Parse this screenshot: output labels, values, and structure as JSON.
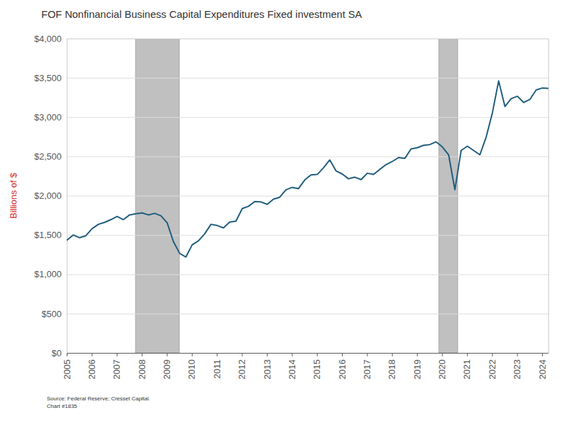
{
  "chart_data": {
    "type": "line",
    "title": "FOF Nonfinancial Business Capital Expenditures Fixed investment SA",
    "y_label": "Billions of $",
    "source": "Source: Federal Reserve; Cresset Capital.",
    "chart_number": "Chart #1835",
    "color": "#1d5b7c",
    "grid": true,
    "x": [
      2005,
      2005.25,
      2005.5,
      2005.75,
      2006,
      2006.25,
      2006.5,
      2006.75,
      2007,
      2007.25,
      2007.5,
      2007.75,
      2008,
      2008.25,
      2008.5,
      2008.75,
      2009,
      2009.25,
      2009.5,
      2009.75,
      2010,
      2010.25,
      2010.5,
      2010.75,
      2011,
      2011.25,
      2011.5,
      2011.75,
      2012,
      2012.25,
      2012.5,
      2012.75,
      2013,
      2013.25,
      2013.5,
      2013.75,
      2014,
      2014.25,
      2014.5,
      2014.75,
      2015,
      2015.25,
      2015.5,
      2015.75,
      2016,
      2016.25,
      2016.5,
      2016.75,
      2017,
      2017.25,
      2017.5,
      2017.75,
      2018,
      2018.25,
      2018.5,
      2018.75,
      2019,
      2019.25,
      2019.5,
      2019.75,
      2020,
      2020.25,
      2020.5,
      2020.75,
      2021,
      2021.25,
      2021.5,
      2021.75,
      2022,
      2022.25,
      2022.5,
      2022.75,
      2023,
      2023.25,
      2023.5,
      2023.75,
      2024,
      2024.25
    ],
    "values": [
      1440,
      1505,
      1470,
      1495,
      1585,
      1640,
      1665,
      1700,
      1740,
      1700,
      1760,
      1775,
      1785,
      1760,
      1780,
      1750,
      1660,
      1420,
      1270,
      1225,
      1380,
      1430,
      1520,
      1640,
      1625,
      1595,
      1670,
      1680,
      1840,
      1870,
      1930,
      1925,
      1895,
      1960,
      1985,
      2080,
      2110,
      2095,
      2205,
      2270,
      2275,
      2360,
      2460,
      2320,
      2280,
      2220,
      2240,
      2210,
      2290,
      2275,
      2340,
      2400,
      2440,
      2490,
      2480,
      2600,
      2615,
      2645,
      2655,
      2690,
      2625,
      2525,
      2080,
      2580,
      2635,
      2580,
      2525,
      2750,
      3060,
      3465,
      3140,
      3240,
      3270,
      3190,
      3230,
      3350,
      3375,
      3370
    ],
    "recessions": [
      {
        "start": 2007.75,
        "end": 2009.5
      },
      {
        "start": 2019.875,
        "end": 2020.625
      }
    ],
    "xlim": [
      2005,
      2024.25
    ],
    "xticks": [
      2005,
      2006,
      2007,
      2008,
      2009,
      2010,
      2011,
      2012,
      2013,
      2014,
      2015,
      2016,
      2017,
      2018,
      2019,
      2020,
      2021,
      2022,
      2023,
      2024
    ],
    "ylim": [
      0,
      4000
    ],
    "yticks": [
      {
        "value": 0,
        "label": "$0"
      },
      {
        "value": 500,
        "label": "$500"
      },
      {
        "value": 1000,
        "label": "$1,000"
      },
      {
        "value": 1500,
        "label": "$1,500"
      },
      {
        "value": 2000,
        "label": "$2,000"
      },
      {
        "value": 2500,
        "label": "$2,500"
      },
      {
        "value": 3000,
        "label": "$3,000"
      },
      {
        "value": 3500,
        "label": "$3,500"
      },
      {
        "value": 4000,
        "label": "$4,000"
      }
    ]
  }
}
